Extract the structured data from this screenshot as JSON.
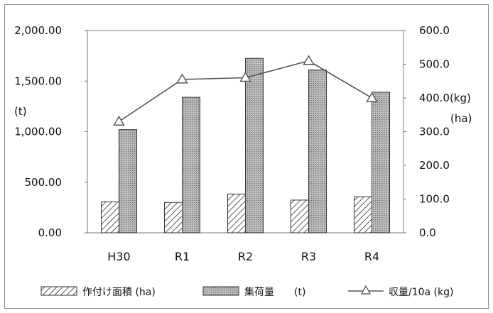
{
  "chart_data": {
    "type": "bar",
    "categories": [
      "H30",
      "R1",
      "R2",
      "R3",
      "R4"
    ],
    "series": [
      {
        "name": "作付け面積 (ha)",
        "type": "bar",
        "axis": "right",
        "pattern": "diagonal-hatch",
        "values": [
          92,
          90,
          115,
          97,
          107
        ]
      },
      {
        "name": "集荷量　　(t)",
        "type": "bar",
        "axis": "left",
        "pattern": "gray-dots",
        "values": [
          1020,
          1340,
          1725,
          1610,
          1390
        ]
      },
      {
        "name": "収量/10a (kg)",
        "type": "line",
        "axis": "right",
        "marker": "triangle",
        "values": [
          330,
          455,
          460,
          510,
          400
        ]
      }
    ],
    "left_axis": {
      "ylim": [
        0,
        2000
      ],
      "ticks": [
        "2,000.00",
        "1,500.00",
        "1,000.00",
        "500.00",
        "0.00"
      ],
      "label": "(t)"
    },
    "right_axis": {
      "ylim": [
        0,
        600
      ],
      "ticks": [
        "600.0",
        "500.0",
        "400.0(kg)",
        "300.0",
        "200.0",
        "100.0",
        "0.0"
      ],
      "label": "(ha)"
    },
    "legend_position": "bottom",
    "grid": false,
    "colors": {
      "bar_hatch": "#333333",
      "bar_dots": "#9a9a9a",
      "line": "#555555",
      "frame": "#8a8a8a"
    }
  }
}
